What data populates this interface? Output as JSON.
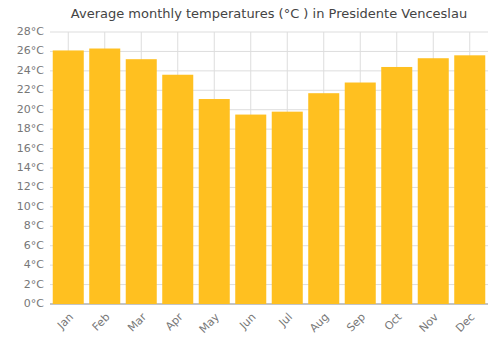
{
  "chart_data": {
    "type": "bar",
    "title": "Average monthly temperatures (°C ) in Presidente Venceslau",
    "categories": [
      "Jan",
      "Feb",
      "Mar",
      "Apr",
      "May",
      "Jun",
      "Jul",
      "Aug",
      "Sep",
      "Oct",
      "Nov",
      "Dec"
    ],
    "values": [
      26.1,
      26.3,
      25.2,
      23.6,
      21.1,
      19.5,
      19.8,
      21.7,
      22.8,
      24.4,
      25.3,
      25.6
    ],
    "color": "#FFC020",
    "ylim": [
      0,
      28
    ],
    "yticks": [
      {
        "value": 0,
        "label": "0°C"
      },
      {
        "value": 2,
        "label": "2°C"
      },
      {
        "value": 4,
        "label": "4°C"
      },
      {
        "value": 6,
        "label": "6°C"
      },
      {
        "value": 8,
        "label": "8°C"
      },
      {
        "value": 10,
        "label": "10°C"
      },
      {
        "value": 12,
        "label": "12°C"
      },
      {
        "value": 14,
        "label": "14°C"
      },
      {
        "value": 16,
        "label": "16°C"
      },
      {
        "value": 18,
        "label": "18°C"
      },
      {
        "value": 20,
        "label": "20°C"
      },
      {
        "value": 22,
        "label": "22°C"
      },
      {
        "value": 24,
        "label": "24°C"
      },
      {
        "value": 26,
        "label": "26°C"
      },
      {
        "value": 28,
        "label": "28°C"
      }
    ],
    "grid": true
  }
}
